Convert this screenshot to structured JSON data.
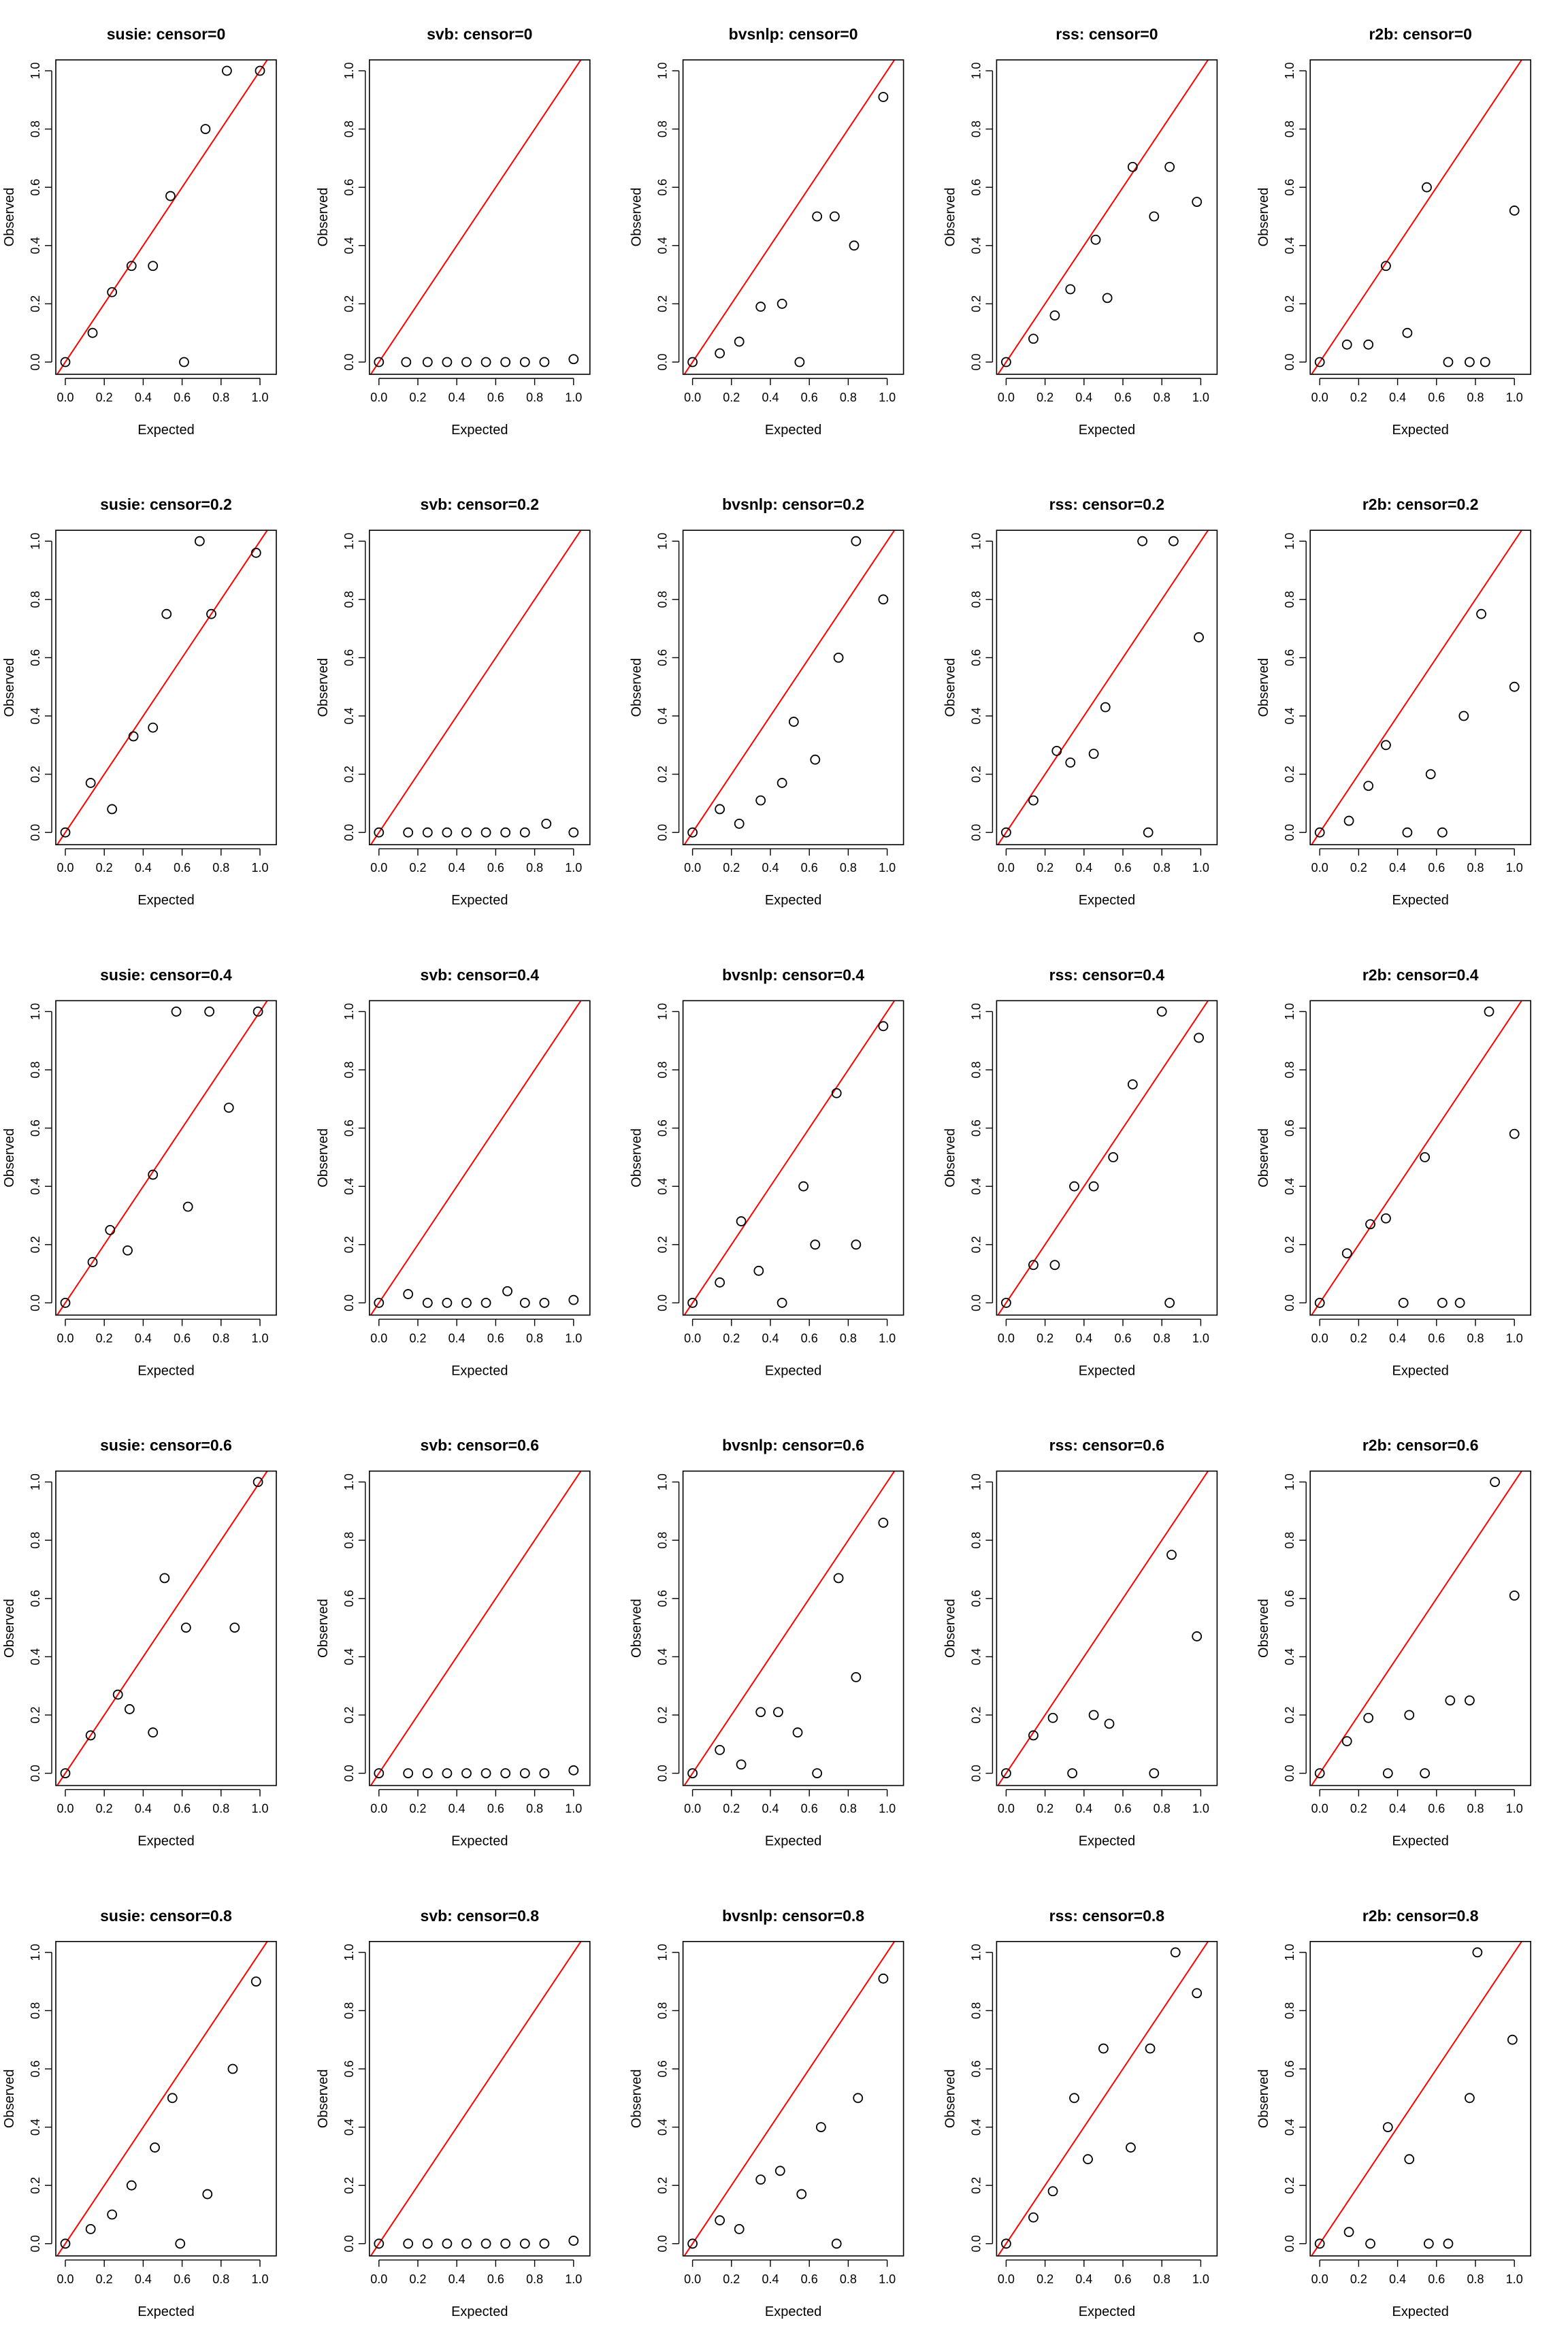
{
  "chart_data": [
    {
      "type": "scatter",
      "title": "susie: censor=0",
      "xlabel": "Expected",
      "ylabel": "Observed",
      "xlim": [
        0,
        1
      ],
      "ylim": [
        0,
        1
      ],
      "x": [
        0.0,
        0.14,
        0.24,
        0.34,
        0.45,
        0.54,
        0.61,
        0.72,
        0.83,
        1.0
      ],
      "y": [
        0.0,
        0.1,
        0.24,
        0.33,
        0.33,
        0.57,
        0.0,
        0.8,
        1.0,
        1.0
      ]
    },
    {
      "type": "scatter",
      "title": "svb: censor=0",
      "xlabel": "Expected",
      "ylabel": "Observed",
      "xlim": [
        0,
        1
      ],
      "ylim": [
        0,
        1
      ],
      "x": [
        0.0,
        0.14,
        0.25,
        0.35,
        0.45,
        0.55,
        0.65,
        0.75,
        0.85,
        1.0
      ],
      "y": [
        0.0,
        0.0,
        0.0,
        0.0,
        0.0,
        0.0,
        0.0,
        0.0,
        0.0,
        0.01
      ]
    },
    {
      "type": "scatter",
      "title": "bvsnlp: censor=0",
      "xlabel": "Expected",
      "ylabel": "Observed",
      "xlim": [
        0,
        1
      ],
      "ylim": [
        0,
        1
      ],
      "x": [
        0.0,
        0.14,
        0.24,
        0.35,
        0.46,
        0.55,
        0.64,
        0.73,
        0.83,
        0.98
      ],
      "y": [
        0.0,
        0.03,
        0.07,
        0.19,
        0.2,
        0.0,
        0.5,
        0.5,
        0.4,
        0.91
      ]
    },
    {
      "type": "scatter",
      "title": "rss: censor=0",
      "xlabel": "Expected",
      "ylabel": "Observed",
      "xlim": [
        0,
        1
      ],
      "ylim": [
        0,
        1
      ],
      "x": [
        0.0,
        0.14,
        0.25,
        0.33,
        0.46,
        0.52,
        0.65,
        0.76,
        0.84,
        0.98
      ],
      "y": [
        0.0,
        0.08,
        0.16,
        0.25,
        0.42,
        0.22,
        0.67,
        0.5,
        0.67,
        0.55
      ]
    },
    {
      "type": "scatter",
      "title": "r2b: censor=0",
      "xlabel": "Expected",
      "ylabel": "Observed",
      "xlim": [
        0,
        1
      ],
      "ylim": [
        0,
        1
      ],
      "x": [
        0.0,
        0.14,
        0.25,
        0.34,
        0.45,
        0.55,
        0.66,
        0.77,
        0.85,
        1.0
      ],
      "y": [
        0.0,
        0.06,
        0.06,
        0.33,
        0.1,
        0.6,
        0.0,
        0.0,
        0.0,
        0.52
      ]
    },
    {
      "type": "scatter",
      "title": "susie: censor=0.2",
      "xlabel": "Expected",
      "ylabel": "Observed",
      "xlim": [
        0,
        1
      ],
      "ylim": [
        0,
        1
      ],
      "x": [
        0.0,
        0.13,
        0.24,
        0.35,
        0.45,
        0.52,
        0.69,
        0.75,
        0.98
      ],
      "y": [
        0.0,
        0.17,
        0.08,
        0.33,
        0.36,
        0.75,
        1.0,
        0.75,
        0.96
      ]
    },
    {
      "type": "scatter",
      "title": "svb: censor=0.2",
      "xlabel": "Expected",
      "ylabel": "Observed",
      "xlim": [
        0,
        1
      ],
      "ylim": [
        0,
        1
      ],
      "x": [
        0.0,
        0.15,
        0.25,
        0.35,
        0.45,
        0.55,
        0.65,
        0.75,
        0.86,
        1.0
      ],
      "y": [
        0.0,
        0.0,
        0.0,
        0.0,
        0.0,
        0.0,
        0.0,
        0.0,
        0.03,
        0.0
      ]
    },
    {
      "type": "scatter",
      "title": "bvsnlp: censor=0.2",
      "xlabel": "Expected",
      "ylabel": "Observed",
      "xlim": [
        0,
        1
      ],
      "ylim": [
        0,
        1
      ],
      "x": [
        0.0,
        0.14,
        0.24,
        0.35,
        0.46,
        0.52,
        0.63,
        0.75,
        0.84,
        0.98
      ],
      "y": [
        0.0,
        0.08,
        0.03,
        0.11,
        0.17,
        0.38,
        0.25,
        0.6,
        1.0,
        0.8
      ]
    },
    {
      "type": "scatter",
      "title": "rss: censor=0.2",
      "xlabel": "Expected",
      "ylabel": "Observed",
      "xlim": [
        0,
        1
      ],
      "ylim": [
        0,
        1
      ],
      "x": [
        0.0,
        0.14,
        0.26,
        0.33,
        0.45,
        0.51,
        0.7,
        0.73,
        0.86,
        0.99
      ],
      "y": [
        0.0,
        0.11,
        0.28,
        0.24,
        0.27,
        0.43,
        1.0,
        0.0,
        1.0,
        0.67
      ]
    },
    {
      "type": "scatter",
      "title": "r2b: censor=0.2",
      "xlabel": "Expected",
      "ylabel": "Observed",
      "xlim": [
        0,
        1
      ],
      "ylim": [
        0,
        1
      ],
      "x": [
        0.0,
        0.15,
        0.25,
        0.34,
        0.45,
        0.57,
        0.63,
        0.74,
        0.83,
        1.0
      ],
      "y": [
        0.0,
        0.04,
        0.16,
        0.3,
        0.0,
        0.2,
        0.0,
        0.4,
        0.75,
        0.5
      ]
    },
    {
      "type": "scatter",
      "title": "susie: censor=0.4",
      "xlabel": "Expected",
      "ylabel": "Observed",
      "xlim": [
        0,
        1
      ],
      "ylim": [
        0,
        1
      ],
      "x": [
        0.0,
        0.14,
        0.23,
        0.32,
        0.45,
        0.57,
        0.63,
        0.74,
        0.84,
        0.99
      ],
      "y": [
        0.0,
        0.14,
        0.25,
        0.18,
        0.44,
        1.0,
        0.33,
        1.0,
        0.67,
        1.0
      ]
    },
    {
      "type": "scatter",
      "title": "svb: censor=0.4",
      "xlabel": "Expected",
      "ylabel": "Observed",
      "xlim": [
        0,
        1
      ],
      "ylim": [
        0,
        1
      ],
      "x": [
        0.0,
        0.15,
        0.25,
        0.35,
        0.45,
        0.55,
        0.66,
        0.75,
        0.85,
        1.0
      ],
      "y": [
        0.0,
        0.03,
        0.0,
        0.0,
        0.0,
        0.0,
        0.04,
        0.0,
        0.0,
        0.01
      ]
    },
    {
      "type": "scatter",
      "title": "bvsnlp: censor=0.4",
      "xlabel": "Expected",
      "ylabel": "Observed",
      "xlim": [
        0,
        1
      ],
      "ylim": [
        0,
        1
      ],
      "x": [
        0.0,
        0.14,
        0.25,
        0.34,
        0.46,
        0.57,
        0.63,
        0.74,
        0.84,
        0.98
      ],
      "y": [
        0.0,
        0.07,
        0.28,
        0.11,
        0.0,
        0.4,
        0.2,
        0.72,
        0.2,
        0.95
      ]
    },
    {
      "type": "scatter",
      "title": "rss: censor=0.4",
      "xlabel": "Expected",
      "ylabel": "Observed",
      "xlim": [
        0,
        1
      ],
      "ylim": [
        0,
        1
      ],
      "x": [
        0.0,
        0.14,
        0.25,
        0.35,
        0.45,
        0.55,
        0.65,
        0.8,
        0.84,
        0.99
      ],
      "y": [
        0.0,
        0.13,
        0.13,
        0.4,
        0.4,
        0.5,
        0.75,
        1.0,
        0.0,
        0.91
      ]
    },
    {
      "type": "scatter",
      "title": "r2b: censor=0.4",
      "xlabel": "Expected",
      "ylabel": "Observed",
      "xlim": [
        0,
        1
      ],
      "ylim": [
        0,
        1
      ],
      "x": [
        0.0,
        0.14,
        0.26,
        0.34,
        0.43,
        0.54,
        0.63,
        0.72,
        0.87,
        1.0
      ],
      "y": [
        0.0,
        0.17,
        0.27,
        0.29,
        0.0,
        0.5,
        0.0,
        0.0,
        1.0,
        0.58
      ]
    },
    {
      "type": "scatter",
      "title": "susie: censor=0.6",
      "xlabel": "Expected",
      "ylabel": "Observed",
      "xlim": [
        0,
        1
      ],
      "ylim": [
        0,
        1
      ],
      "x": [
        0.0,
        0.13,
        0.27,
        0.33,
        0.45,
        0.51,
        0.62,
        0.87,
        0.99
      ],
      "y": [
        0.0,
        0.13,
        0.27,
        0.22,
        0.14,
        0.67,
        0.5,
        0.5,
        1.0
      ]
    },
    {
      "type": "scatter",
      "title": "svb: censor=0.6",
      "xlabel": "Expected",
      "ylabel": "Observed",
      "xlim": [
        0,
        1
      ],
      "ylim": [
        0,
        1
      ],
      "x": [
        0.0,
        0.15,
        0.25,
        0.35,
        0.45,
        0.55,
        0.65,
        0.75,
        0.85,
        1.0
      ],
      "y": [
        0.0,
        0.0,
        0.0,
        0.0,
        0.0,
        0.0,
        0.0,
        0.0,
        0.0,
        0.01
      ]
    },
    {
      "type": "scatter",
      "title": "bvsnlp: censor=0.6",
      "xlabel": "Expected",
      "ylabel": "Observed",
      "xlim": [
        0,
        1
      ],
      "ylim": [
        0,
        1
      ],
      "x": [
        0.0,
        0.14,
        0.25,
        0.35,
        0.44,
        0.54,
        0.64,
        0.75,
        0.84,
        0.98
      ],
      "y": [
        0.0,
        0.08,
        0.03,
        0.21,
        0.21,
        0.14,
        0.0,
        0.67,
        0.33,
        0.86
      ]
    },
    {
      "type": "scatter",
      "title": "rss: censor=0.6",
      "xlabel": "Expected",
      "ylabel": "Observed",
      "xlim": [
        0,
        1
      ],
      "ylim": [
        0,
        1
      ],
      "x": [
        0.0,
        0.14,
        0.24,
        0.34,
        0.45,
        0.53,
        0.76,
        0.85,
        0.98
      ],
      "y": [
        0.0,
        0.13,
        0.19,
        0.0,
        0.2,
        0.17,
        0.0,
        0.75,
        0.47
      ]
    },
    {
      "type": "scatter",
      "title": "r2b: censor=0.6",
      "xlabel": "Expected",
      "ylabel": "Observed",
      "xlim": [
        0,
        1
      ],
      "ylim": [
        0,
        1
      ],
      "x": [
        0.0,
        0.14,
        0.25,
        0.35,
        0.46,
        0.54,
        0.67,
        0.77,
        0.9,
        1.0
      ],
      "y": [
        0.0,
        0.11,
        0.19,
        0.0,
        0.2,
        0.0,
        0.25,
        0.25,
        1.0,
        0.61
      ]
    },
    {
      "type": "scatter",
      "title": "susie: censor=0.8",
      "xlabel": "Expected",
      "ylabel": "Observed",
      "xlim": [
        0,
        1
      ],
      "ylim": [
        0,
        1
      ],
      "x": [
        0.0,
        0.13,
        0.24,
        0.34,
        0.46,
        0.55,
        0.59,
        0.73,
        0.86,
        0.98
      ],
      "y": [
        0.0,
        0.05,
        0.1,
        0.2,
        0.33,
        0.5,
        0.0,
        0.17,
        0.6,
        0.9
      ]
    },
    {
      "type": "scatter",
      "title": "svb: censor=0.8",
      "xlabel": "Expected",
      "ylabel": "Observed",
      "xlim": [
        0,
        1
      ],
      "ylim": [
        0,
        1
      ],
      "x": [
        0.0,
        0.15,
        0.25,
        0.35,
        0.45,
        0.55,
        0.65,
        0.75,
        0.85,
        1.0
      ],
      "y": [
        0.0,
        0.0,
        0.0,
        0.0,
        0.0,
        0.0,
        0.0,
        0.0,
        0.0,
        0.01
      ]
    },
    {
      "type": "scatter",
      "title": "bvsnlp: censor=0.8",
      "xlabel": "Expected",
      "ylabel": "Observed",
      "xlim": [
        0,
        1
      ],
      "ylim": [
        0,
        1
      ],
      "x": [
        0.0,
        0.14,
        0.24,
        0.35,
        0.45,
        0.56,
        0.66,
        0.74,
        0.85,
        0.98
      ],
      "y": [
        0.0,
        0.08,
        0.05,
        0.22,
        0.25,
        0.17,
        0.4,
        0.0,
        0.5,
        0.91
      ]
    },
    {
      "type": "scatter",
      "title": "rss: censor=0.8",
      "xlabel": "Expected",
      "ylabel": "Observed",
      "xlim": [
        0,
        1
      ],
      "ylim": [
        0,
        1
      ],
      "x": [
        0.0,
        0.14,
        0.24,
        0.35,
        0.42,
        0.5,
        0.64,
        0.74,
        0.87,
        0.98
      ],
      "y": [
        0.0,
        0.09,
        0.18,
        0.5,
        0.29,
        0.67,
        0.33,
        0.67,
        1.0,
        0.86
      ]
    },
    {
      "type": "scatter",
      "title": "r2b: censor=0.8",
      "xlabel": "Expected",
      "ylabel": "Observed",
      "xlim": [
        0,
        1
      ],
      "ylim": [
        0,
        1
      ],
      "x": [
        0.0,
        0.15,
        0.26,
        0.35,
        0.46,
        0.56,
        0.66,
        0.77,
        0.81,
        0.99
      ],
      "y": [
        0.0,
        0.04,
        0.0,
        0.4,
        0.29,
        0.0,
        0.0,
        0.5,
        1.0,
        0.7
      ]
    }
  ],
  "colors": {
    "reference_line": "#ff0000",
    "points": "#000000",
    "axes": "#000000"
  }
}
